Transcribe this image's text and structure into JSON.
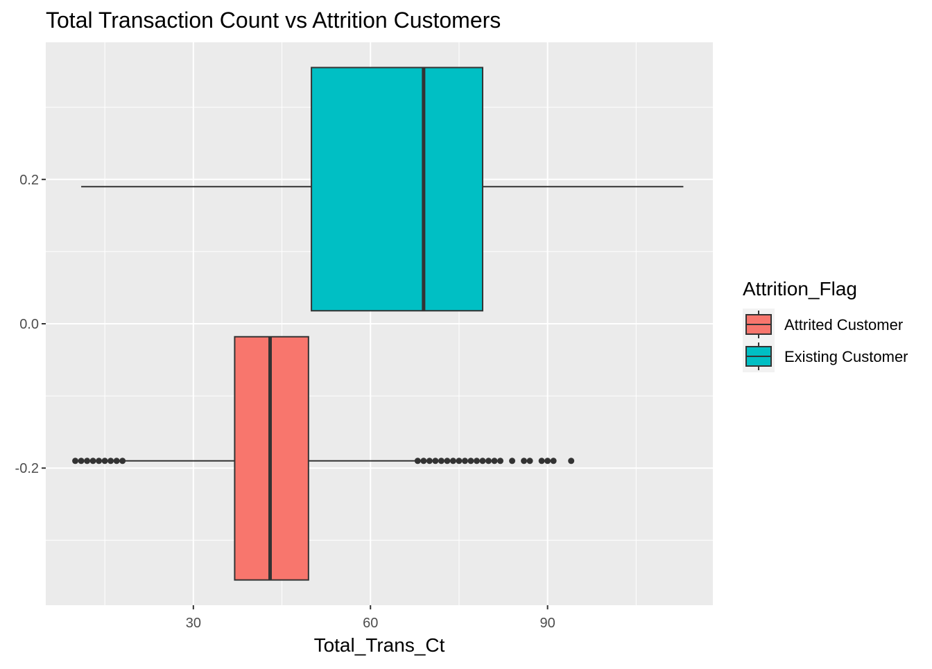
{
  "chart_data": {
    "type": "boxplot",
    "title": "Total Transaction Count vs Attrition Customers",
    "xlabel": "Total_Trans_Ct",
    "ylabel": "",
    "xlim": [
      5,
      118
    ],
    "ylim": [
      -0.39,
      0.39
    ],
    "x_ticks": [
      30,
      60,
      90
    ],
    "y_ticks": [
      -0.2,
      0.0,
      0.2
    ],
    "y_tick_labels": [
      "-0.2",
      "0.0",
      "0.2"
    ],
    "grid": true,
    "legend": {
      "title": "Attrition_Flag",
      "position": "right"
    },
    "series": [
      {
        "name": "Attrited Customer",
        "color": "#F8766D",
        "y_center": -0.19,
        "y_range": [
          -0.355,
          -0.018
        ],
        "whisker_low": 18,
        "q1": 37,
        "median": 43,
        "q3": 49.5,
        "whisker_high": 68,
        "outliers": [
          10,
          11,
          12,
          13,
          14,
          15,
          16,
          17,
          18,
          68,
          69,
          70,
          71,
          72,
          73,
          74,
          75,
          76,
          77,
          78,
          79,
          80,
          81,
          82,
          84,
          86,
          87,
          89,
          90,
          91,
          94
        ]
      },
      {
        "name": "Existing Customer",
        "color": "#00BFC4",
        "y_center": 0.19,
        "y_range": [
          0.018,
          0.355
        ],
        "whisker_low": 11,
        "q1": 50,
        "median": 69,
        "q3": 79,
        "whisker_high": 113,
        "outliers": []
      }
    ]
  }
}
